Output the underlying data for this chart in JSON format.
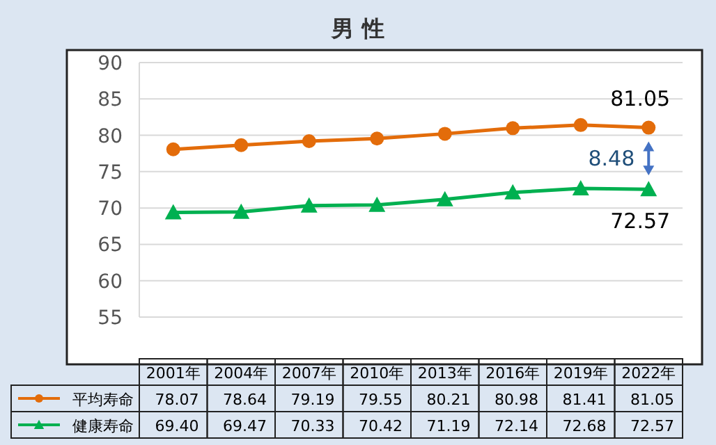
{
  "chart_data": {
    "type": "line",
    "title": "男 性",
    "categories": [
      "2001年",
      "2004年",
      "2007年",
      "2010年",
      "2013年",
      "2016年",
      "2019年",
      "2022年"
    ],
    "series": [
      {
        "name": "平均寿命",
        "color": "#e36c0a",
        "marker": "circle",
        "values": [
          78.07,
          78.64,
          79.19,
          79.55,
          80.21,
          80.98,
          81.41,
          81.05
        ],
        "value_labels": [
          "78.07",
          "78.64",
          "79.19",
          "79.55",
          "80.21",
          "80.98",
          "81.41",
          "81.05"
        ]
      },
      {
        "name": "健康寿命",
        "color": "#00b050",
        "marker": "triangle",
        "values": [
          69.4,
          69.47,
          70.33,
          70.42,
          71.19,
          72.14,
          72.68,
          72.57
        ],
        "value_labels": [
          "69.40",
          "69.47",
          "70.33",
          "70.42",
          "71.19",
          "72.14",
          "72.68",
          "72.57"
        ]
      }
    ],
    "ylim": [
      55,
      90
    ],
    "yticks": [
      55,
      60,
      65,
      70,
      75,
      80,
      85,
      90
    ],
    "grid": "y",
    "legend": "bottom",
    "annotations": [
      {
        "text": "81.05",
        "x": "2022年",
        "y": 81.05
      },
      {
        "text": "72.57",
        "x": "2022年",
        "y": 72.57
      },
      "8.48"
    ]
  }
}
